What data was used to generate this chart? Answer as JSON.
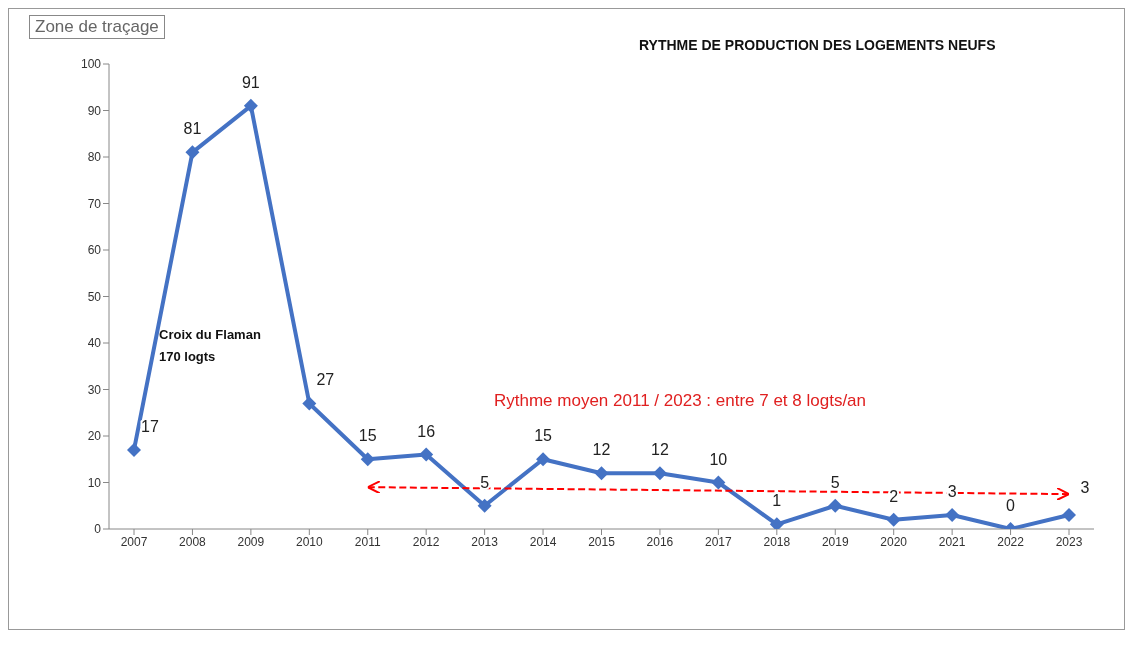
{
  "chart_data": {
    "type": "line",
    "title": "RYTHME DE PRODUCTION DES LOGEMENTS NEUFS",
    "categories": [
      "2007",
      "2008",
      "2009",
      "2010",
      "2011",
      "2012",
      "2013",
      "2014",
      "2015",
      "2016",
      "2017",
      "2018",
      "2019",
      "2020",
      "2021",
      "2022",
      "2023"
    ],
    "series": [
      {
        "color": "#4472c4",
        "values": [
          17,
          81,
          91,
          27,
          15,
          16,
          5,
          15,
          12,
          12,
          10,
          1,
          5,
          2,
          3,
          0,
          3
        ],
        "data_labels": true,
        "marker": "diamond"
      },
      {
        "type": "line",
        "color": "#ff0000",
        "line_style": "dashed",
        "marker": "none",
        "values": [
          null,
          null,
          null,
          null,
          9,
          null,
          null,
          null,
          null,
          null,
          null,
          null,
          null,
          null,
          null,
          null,
          7.5
        ]
      }
    ],
    "ylim": [
      0,
      100
    ],
    "yticks": [
      0,
      10,
      20,
      30,
      40,
      50,
      60,
      70,
      80,
      90,
      100
    ],
    "grid": false,
    "annotations": [
      "Zone de traçage",
      "Croix du Flaman\n170 logts",
      "Rythme moyen 2011 / 2023 : entre 7 et 8 logts/an"
    ]
  }
}
